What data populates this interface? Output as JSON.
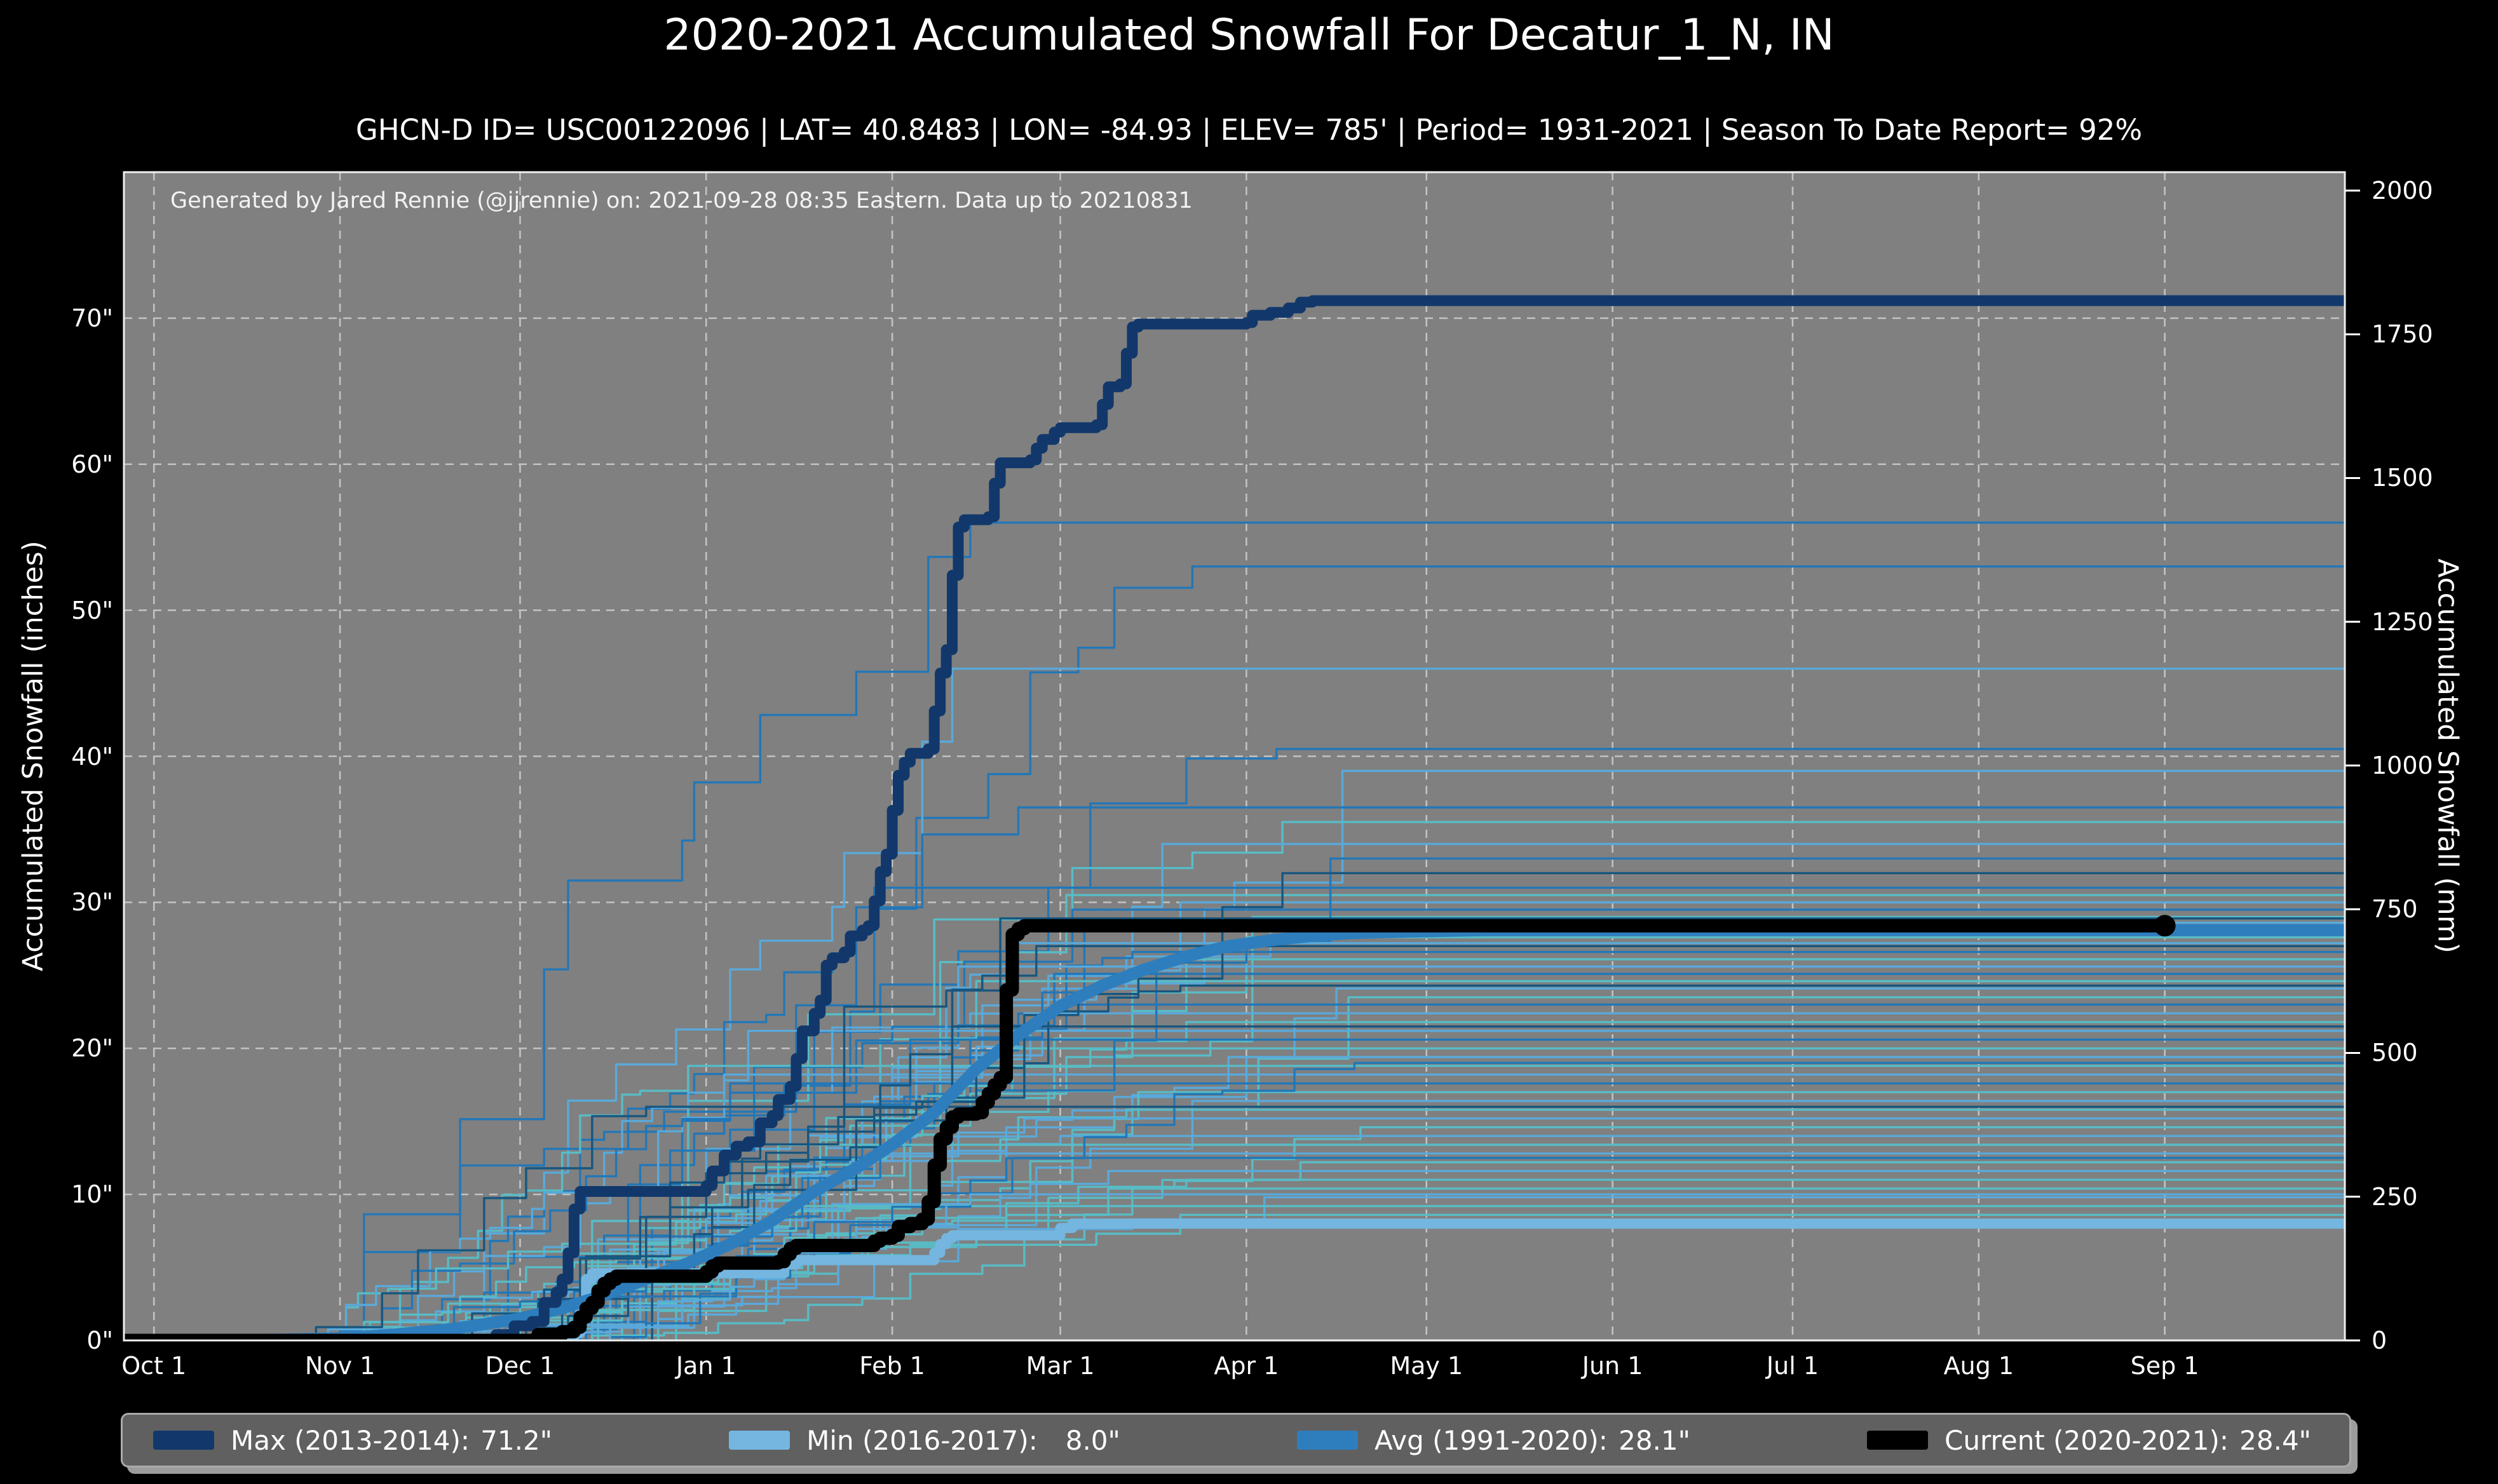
{
  "header": {
    "title": "2020-2021 Accumulated Snowfall For Decatur_1_N, IN",
    "subtitle": "GHCN-D ID= USC00122096 | LAT= 40.8483 | LON= -84.93 | ELEV= 785' | Period= 1931-2021 | Season To Date Report= 92%"
  },
  "plot": {
    "watermark": "Generated by Jared Rennie (@jjrennie) on: 2021-09-28 08:35 Eastern. Data up to 20210831",
    "bg_color": "#808080",
    "grid_color": "#c3c3c3",
    "spine_color": "#efefef",
    "figure_bg": "#000000",
    "text_color": "#ffffff"
  },
  "axes": {
    "left_label": "Accumulated Snowfall (inches)",
    "right_label": "Accumulated Snowfall (mm)",
    "x_tick_labels": [
      "Oct 1",
      "Nov 1",
      "Dec 1",
      "Jan 1",
      "Feb 1",
      "Mar 1",
      "Apr 1",
      "May 1",
      "Jun 1",
      "Jul 1",
      "Aug 1",
      "Sep 1"
    ],
    "x_tick_days": [
      0,
      31,
      61,
      92,
      123,
      151,
      182,
      212,
      243,
      273,
      304,
      335
    ],
    "left_tick_values": [
      0,
      10,
      20,
      30,
      40,
      50,
      60,
      70
    ],
    "left_tick_suffix": "\"",
    "right_tick_values": [
      0,
      250,
      500,
      750,
      1000,
      1250,
      1500,
      1750,
      2000
    ],
    "x_domain_days": [
      -5,
      365
    ],
    "y_domain_inches": [
      0,
      80
    ],
    "mm_per_inch": 25.4
  },
  "legend": {
    "items": [
      {
        "name": "max",
        "label": "Max (2013-2014):",
        "value": "71.2\"",
        "color": "#12386b"
      },
      {
        "name": "min",
        "label": "Min (2016-2017):",
        "value": "8.0\"",
        "color": "#74b6e0"
      },
      {
        "name": "avg",
        "label": "Avg (1991-2020):",
        "value": "28.1\"",
        "color": "#2e7ebe"
      },
      {
        "name": "current",
        "label": "Current (2020-2021):",
        "value": "28.4\"",
        "color": "#000000"
      }
    ]
  },
  "chart_data": {
    "type": "line",
    "title": "2020-2021 Accumulated Snowfall For Decatur_1_N, IN",
    "xlabel": "",
    "ylabel_left": "Accumulated Snowfall (inches)",
    "ylabel_right": "Accumulated Snowfall (mm)",
    "x_units": "days since Oct 1",
    "y_units": "inches",
    "grid": true,
    "legend_position": "bottom",
    "series": [
      {
        "name": "max_2013_2014",
        "label": "Max (2013-2014)",
        "final_inches": 71.2,
        "color": "#12386b",
        "width": 17,
        "style": "step",
        "points": [
          [
            -5,
            0
          ],
          [
            55,
            0
          ],
          [
            57,
            0.4
          ],
          [
            60,
            1
          ],
          [
            63,
            1.3
          ],
          [
            65,
            2.6
          ],
          [
            67,
            3.3
          ],
          [
            68,
            4.2
          ],
          [
            69,
            6
          ],
          [
            70,
            9
          ],
          [
            71,
            10.2
          ],
          [
            91,
            10.2
          ],
          [
            92,
            10.6
          ],
          [
            93,
            11.6
          ],
          [
            95,
            12.7
          ],
          [
            97,
            13.3
          ],
          [
            99,
            13.6
          ],
          [
            101,
            14.9
          ],
          [
            103,
            15.4
          ],
          [
            104,
            16.5
          ],
          [
            106,
            17.4
          ],
          [
            107,
            19.3
          ],
          [
            108,
            21.2
          ],
          [
            110,
            22.4
          ],
          [
            111,
            23.3
          ],
          [
            112,
            25.7
          ],
          [
            113,
            26.2
          ],
          [
            115,
            26.6
          ],
          [
            116,
            27.7
          ],
          [
            118,
            28.1
          ],
          [
            119,
            28.4
          ],
          [
            120,
            30.1
          ],
          [
            121,
            32.1
          ],
          [
            122,
            33.3
          ],
          [
            123,
            36.3
          ],
          [
            124,
            38.7
          ],
          [
            125,
            39.6
          ],
          [
            126,
            40.2
          ],
          [
            129,
            40.5
          ],
          [
            130,
            43.1
          ],
          [
            131,
            45.7
          ],
          [
            132,
            47.3
          ],
          [
            133,
            52.4
          ],
          [
            134,
            55.7
          ],
          [
            135,
            56.2
          ],
          [
            139,
            56.4
          ],
          [
            140,
            58.7
          ],
          [
            141,
            60.1
          ],
          [
            146,
            60.3
          ],
          [
            147,
            61.1
          ],
          [
            148,
            61.7
          ],
          [
            150,
            62.2
          ],
          [
            151,
            62.5
          ],
          [
            157,
            62.7
          ],
          [
            158,
            64.1
          ],
          [
            159,
            65.3
          ],
          [
            161,
            65.5
          ],
          [
            162,
            67.6
          ],
          [
            163,
            69.4
          ],
          [
            164,
            69.6
          ],
          [
            182,
            69.7
          ],
          [
            183,
            70.2
          ],
          [
            186,
            70.4
          ],
          [
            189,
            70.7
          ],
          [
            191,
            71.1
          ],
          [
            193,
            71.2
          ],
          [
            365,
            71.2
          ]
        ]
      },
      {
        "name": "min_2016_2017",
        "label": "Min (2016-2017)",
        "final_inches": 8.0,
        "color": "#74b6e0",
        "width": 16,
        "style": "step",
        "points": [
          [
            -5,
            0
          ],
          [
            69,
            0
          ],
          [
            70,
            0.5
          ],
          [
            71,
            2.2
          ],
          [
            72,
            4.2
          ],
          [
            73,
            4.6
          ],
          [
            103,
            4.6
          ],
          [
            105,
            5.2
          ],
          [
            107,
            5.5
          ],
          [
            129,
            5.5
          ],
          [
            130,
            6
          ],
          [
            131,
            6.6
          ],
          [
            132,
            7
          ],
          [
            133,
            7.2
          ],
          [
            149,
            7.2
          ],
          [
            151,
            7.7
          ],
          [
            153,
            8
          ],
          [
            365,
            8
          ]
        ]
      },
      {
        "name": "avg_1991_2020",
        "label": "Avg (1991-2020)",
        "final_inches": 28.1,
        "color": "#2e7ebe",
        "width": 19,
        "style": "smooth",
        "points": [
          [
            -5,
            0
          ],
          [
            20,
            0.05
          ],
          [
            31,
            0.15
          ],
          [
            40,
            0.4
          ],
          [
            50,
            0.8
          ],
          [
            61,
            1.5
          ],
          [
            68,
            2.2
          ],
          [
            75,
            3.1
          ],
          [
            82,
            4.2
          ],
          [
            89,
            5.3
          ],
          [
            96,
            6.6
          ],
          [
            103,
            8.2
          ],
          [
            110,
            10.2
          ],
          [
            117,
            11.8
          ],
          [
            123,
            13.4
          ],
          [
            130,
            15.6
          ],
          [
            137,
            18.6
          ],
          [
            144,
            20.9
          ],
          [
            151,
            22.9
          ],
          [
            158,
            24.3
          ],
          [
            165,
            25.4
          ],
          [
            172,
            26.3
          ],
          [
            179,
            27
          ],
          [
            186,
            27.4
          ],
          [
            193,
            27.7
          ],
          [
            200,
            27.9
          ],
          [
            210,
            28
          ],
          [
            222,
            28.1
          ],
          [
            365,
            28.1
          ]
        ]
      },
      {
        "name": "current_2020_2021",
        "label": "Current (2020-2021)",
        "final_inches": 28.4,
        "color": "#000000",
        "width": 21,
        "style": "step",
        "marker_end": true,
        "marker_radius": 17,
        "points": [
          [
            -5,
            0
          ],
          [
            62,
            0
          ],
          [
            64,
            0.4
          ],
          [
            68,
            0.6
          ],
          [
            70,
            0.9
          ],
          [
            71,
            1.6
          ],
          [
            72,
            2.2
          ],
          [
            73,
            2.6
          ],
          [
            74,
            3.4
          ],
          [
            75,
            3.9
          ],
          [
            76,
            4.2
          ],
          [
            77,
            4.4
          ],
          [
            91,
            4.4
          ],
          [
            92,
            4.7
          ],
          [
            93,
            5.1
          ],
          [
            94,
            5.3
          ],
          [
            104,
            5.4
          ],
          [
            105,
            5.9
          ],
          [
            106,
            6.3
          ],
          [
            107,
            6.5
          ],
          [
            119,
            6.5
          ],
          [
            120,
            6.8
          ],
          [
            121,
            7
          ],
          [
            123,
            7.2
          ],
          [
            124,
            7.8
          ],
          [
            126,
            8
          ],
          [
            128,
            8.3
          ],
          [
            129,
            9.5
          ],
          [
            130,
            12
          ],
          [
            131,
            13.8
          ],
          [
            132,
            14.6
          ],
          [
            133,
            15.3
          ],
          [
            134,
            15.5
          ],
          [
            137,
            15.6
          ],
          [
            138,
            16.3
          ],
          [
            139,
            16.9
          ],
          [
            140,
            17.5
          ],
          [
            141,
            18
          ],
          [
            142,
            24
          ],
          [
            143,
            27.8
          ],
          [
            144,
            28.2
          ],
          [
            145,
            28.4
          ],
          [
            335,
            28.4
          ]
        ]
      }
    ],
    "background_seasons": {
      "note": "thin historical season lines 1931-2020, approximated as seeded monotone step walks ending at season totals (inches)",
      "palette": [
        "#2277b8",
        "#5aa9da",
        "#58bcc6",
        "#17567f"
      ],
      "width": 3.4,
      "seasons": [
        [
          56,
          11,
          0
        ],
        [
          53,
          12,
          0
        ],
        [
          46,
          13,
          1
        ],
        [
          40.5,
          14,
          0
        ],
        [
          39,
          15,
          1
        ],
        [
          36.5,
          16,
          0
        ],
        [
          35.5,
          17,
          2
        ],
        [
          34,
          18,
          1
        ],
        [
          31,
          19,
          0
        ],
        [
          30.5,
          20,
          2
        ],
        [
          30,
          21,
          1
        ],
        [
          29.5,
          22,
          0
        ],
        [
          29,
          23,
          2
        ],
        [
          28.6,
          24,
          1
        ],
        [
          28.2,
          25,
          0
        ],
        [
          27.6,
          26,
          2
        ],
        [
          27.2,
          27,
          1
        ],
        [
          26.6,
          28,
          0
        ],
        [
          26.1,
          29,
          2
        ],
        [
          25.6,
          30,
          1
        ],
        [
          25.1,
          31,
          0
        ],
        [
          24.6,
          32,
          2
        ],
        [
          24.1,
          33,
          1
        ],
        [
          23.5,
          34,
          2
        ],
        [
          23,
          35,
          0
        ],
        [
          22.4,
          36,
          1
        ],
        [
          21.8,
          37,
          2
        ],
        [
          21.2,
          38,
          1
        ],
        [
          20.6,
          39,
          0
        ],
        [
          20,
          40,
          2
        ],
        [
          19.4,
          41,
          1
        ],
        [
          18.8,
          42,
          2
        ],
        [
          18.2,
          43,
          1
        ],
        [
          17.6,
          44,
          0
        ],
        [
          17,
          45,
          2
        ],
        [
          16.4,
          46,
          1
        ],
        [
          15.8,
          47,
          2
        ],
        [
          15.2,
          48,
          1
        ],
        [
          14.6,
          49,
          2
        ],
        [
          14,
          50,
          1
        ],
        [
          13.4,
          51,
          2
        ],
        [
          12.8,
          52,
          1
        ],
        [
          12.2,
          53,
          2
        ],
        [
          11.6,
          54,
          1
        ],
        [
          11,
          55,
          2
        ],
        [
          10.4,
          56,
          2
        ],
        [
          9.8,
          57,
          1
        ],
        [
          9.2,
          58,
          2
        ],
        [
          8.6,
          59,
          2
        ],
        [
          8.2,
          60,
          2
        ],
        [
          33,
          61,
          0
        ],
        [
          32,
          62,
          3
        ],
        [
          28.9,
          63,
          3
        ],
        [
          27,
          64,
          3
        ],
        [
          24.3,
          65,
          3
        ],
        [
          21.5,
          66,
          3
        ],
        [
          19,
          67,
          0
        ],
        [
          16,
          68,
          3
        ],
        [
          12.5,
          69,
          0
        ],
        [
          10,
          70,
          1
        ]
      ]
    }
  }
}
